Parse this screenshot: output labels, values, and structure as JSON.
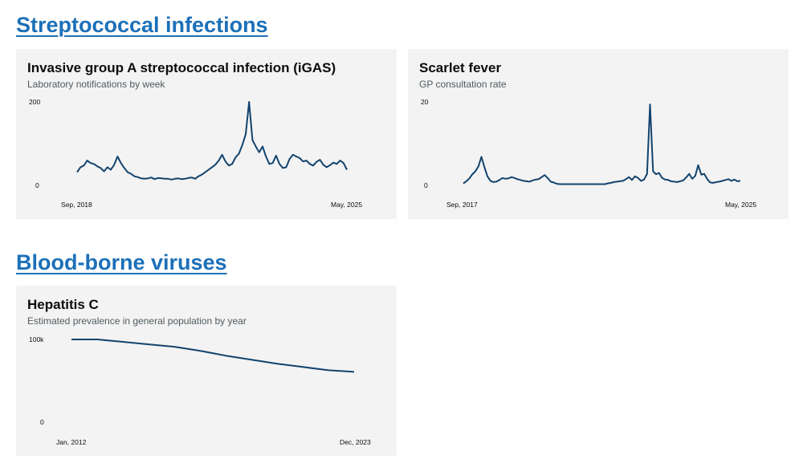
{
  "sections": [
    {
      "title": "Streptococcal infections"
    },
    {
      "title": "Blood-borne viruses"
    }
  ],
  "colors": {
    "link": "#1d70b8",
    "line": "#12436d",
    "card": "#f3f3f3"
  },
  "cards": [
    {
      "title": "Invasive group A streptococcal infection (iGAS)",
      "subtitle": "Laboratory notifications by week"
    },
    {
      "title": "Scarlet fever",
      "subtitle": "GP consultation rate"
    },
    {
      "title": "Hepatitis C",
      "subtitle": "Estimated prevalence in general population by year"
    }
  ],
  "chart_data": [
    {
      "type": "line",
      "title": "Invasive group A streptococcal infection (iGAS)",
      "subtitle": "Laboratory notifications by week",
      "ylim": [
        0,
        200
      ],
      "yticks": [
        "200",
        "0"
      ],
      "xticks": [
        "Sep, 2018",
        "May, 2025"
      ],
      "grid": false,
      "x": [
        "2018-09",
        "2018-10",
        "2018-11",
        "2018-12",
        "2019-01",
        "2019-02",
        "2019-03",
        "2019-04",
        "2019-05",
        "2019-06",
        "2019-07",
        "2019-08",
        "2019-09",
        "2019-10",
        "2019-11",
        "2019-12",
        "2020-01",
        "2020-02",
        "2020-03",
        "2020-04",
        "2020-05",
        "2020-06",
        "2020-07",
        "2020-08",
        "2020-09",
        "2020-10",
        "2020-11",
        "2020-12",
        "2021-01",
        "2021-02",
        "2021-03",
        "2021-04",
        "2021-05",
        "2021-06",
        "2021-07",
        "2021-08",
        "2021-09",
        "2021-10",
        "2021-11",
        "2021-12",
        "2022-01",
        "2022-02",
        "2022-03",
        "2022-04",
        "2022-05",
        "2022-06",
        "2022-07",
        "2022-08",
        "2022-09",
        "2022-10",
        "2022-11",
        "2022-12",
        "2023-01",
        "2023-02",
        "2023-03",
        "2023-04",
        "2023-05",
        "2023-06",
        "2023-07",
        "2023-08",
        "2023-09",
        "2023-10",
        "2023-11",
        "2023-12",
        "2024-01",
        "2024-02",
        "2024-03",
        "2024-04",
        "2024-05",
        "2024-06",
        "2024-07",
        "2024-08",
        "2024-09",
        "2024-10",
        "2024-11",
        "2024-12",
        "2025-01",
        "2025-02",
        "2025-03",
        "2025-04",
        "2025-05"
      ],
      "values": [
        30,
        42,
        46,
        58,
        52,
        50,
        44,
        40,
        32,
        42,
        36,
        48,
        68,
        52,
        40,
        30,
        26,
        20,
        18,
        15,
        14,
        15,
        17,
        13,
        16,
        15,
        14,
        14,
        12,
        14,
        15,
        13,
        14,
        16,
        17,
        14,
        20,
        24,
        30,
        36,
        42,
        48,
        58,
        72,
        56,
        46,
        50,
        66,
        75,
        96,
        122,
        200,
        108,
        92,
        78,
        92,
        68,
        50,
        52,
        70,
        50,
        40,
        42,
        62,
        72,
        68,
        64,
        56,
        58,
        50,
        46,
        55,
        60,
        48,
        42,
        47,
        53,
        50,
        58,
        52,
        36
      ]
    },
    {
      "type": "line",
      "title": "Scarlet fever",
      "subtitle": "GP consultation rate",
      "ylim": [
        0,
        20
      ],
      "yticks": [
        "20",
        "0"
      ],
      "xticks": [
        "Sep, 2017",
        "May, 2025"
      ],
      "grid": false,
      "x": [
        "2017-09",
        "2017-10",
        "2017-11",
        "2017-12",
        "2018-01",
        "2018-02",
        "2018-03",
        "2018-04",
        "2018-05",
        "2018-06",
        "2018-07",
        "2018-08",
        "2018-09",
        "2018-10",
        "2018-11",
        "2018-12",
        "2019-01",
        "2019-02",
        "2019-03",
        "2019-04",
        "2019-05",
        "2019-06",
        "2019-07",
        "2019-08",
        "2019-09",
        "2019-10",
        "2019-11",
        "2019-12",
        "2020-01",
        "2020-02",
        "2020-03",
        "2020-04",
        "2020-05",
        "2020-06",
        "2020-07",
        "2020-08",
        "2020-09",
        "2020-10",
        "2020-11",
        "2020-12",
        "2021-01",
        "2021-02",
        "2021-03",
        "2021-04",
        "2021-05",
        "2021-06",
        "2021-07",
        "2021-08",
        "2021-09",
        "2021-10",
        "2021-11",
        "2021-12",
        "2022-01",
        "2022-02",
        "2022-03",
        "2022-04",
        "2022-05",
        "2022-06",
        "2022-07",
        "2022-08",
        "2022-09",
        "2022-10",
        "2022-11",
        "2022-12",
        "2023-01",
        "2023-02",
        "2023-03",
        "2023-04",
        "2023-05",
        "2023-06",
        "2023-07",
        "2023-08",
        "2023-09",
        "2023-10",
        "2023-11",
        "2023-12",
        "2024-01",
        "2024-02",
        "2024-03",
        "2024-04",
        "2024-05",
        "2024-06",
        "2024-07",
        "2024-08",
        "2024-09",
        "2024-10",
        "2024-11",
        "2024-12",
        "2025-01",
        "2025-02",
        "2025-03",
        "2025-04",
        "2025-05"
      ],
      "values": [
        0.3,
        0.8,
        1.5,
        2.5,
        3.2,
        4.4,
        6.7,
        4.2,
        2.0,
        0.9,
        0.6,
        0.7,
        1.1,
        1.6,
        1.4,
        1.5,
        1.8,
        1.6,
        1.3,
        1.1,
        0.9,
        0.8,
        0.7,
        1.0,
        1.2,
        1.3,
        1.8,
        2.3,
        1.6,
        0.7,
        0.5,
        0.2,
        0.1,
        0.1,
        0.1,
        0.1,
        0.1,
        0.1,
        0.1,
        0.1,
        0.1,
        0.1,
        0.1,
        0.1,
        0.1,
        0.1,
        0.1,
        0.1,
        0.3,
        0.4,
        0.6,
        0.7,
        0.8,
        0.9,
        1.3,
        1.8,
        1.1,
        2.0,
        1.6,
        0.9,
        1.2,
        2.6,
        19.4,
        3.2,
        2.5,
        2.8,
        1.6,
        1.2,
        1.1,
        0.8,
        0.7,
        0.6,
        0.8,
        1.0,
        1.7,
        2.6,
        1.4,
        2.1,
        4.7,
        2.4,
        2.6,
        1.3,
        0.5,
        0.4,
        0.6,
        0.7,
        0.9,
        1.1,
        1.3,
        0.9,
        1.2,
        0.8,
        0.9
      ]
    },
    {
      "type": "line",
      "title": "Hepatitis C",
      "subtitle": "Estimated prevalence in general population by year",
      "ylim": [
        0,
        100000
      ],
      "yticks": [
        "100k",
        "0"
      ],
      "xticks": [
        "Jan, 2012",
        "Dec, 2023"
      ],
      "grid": false,
      "x": [
        "2012",
        "2013",
        "2014",
        "2015",
        "2016",
        "2017",
        "2018",
        "2019",
        "2020",
        "2021",
        "2022",
        "2023"
      ],
      "values": [
        100000,
        100000,
        97000,
        94000,
        91000,
        86000,
        80000,
        75000,
        70000,
        66000,
        62000,
        60000
      ]
    }
  ]
}
